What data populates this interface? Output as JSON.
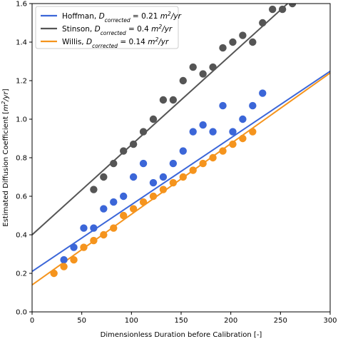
{
  "chart_data": {
    "type": "scatter",
    "xlabel": "Dimensionless Duration before Calibration [-]",
    "ylabel_main": "Estimated Diffusion Coefficient [",
    "ylabel_unit": "m",
    "ylabel_unit_exp": "2",
    "ylabel_unit_rest": "/yr",
    "ylabel_close": "]",
    "xlim": [
      0,
      300
    ],
    "ylim": [
      0,
      1.6
    ],
    "x_ticks": [
      "0",
      "50",
      "100",
      "150",
      "200",
      "250",
      "300"
    ],
    "y_ticks": [
      "0.0",
      "0.2",
      "0.4",
      "0.6",
      "0.8",
      "1.0",
      "1.2",
      "1.4",
      "1.6"
    ],
    "grid": false,
    "legend_position": "top-left",
    "series": [
      {
        "name": "Hoffman",
        "D_label": "D",
        "D_subscript": "corrected",
        "D_value": " = 0.21 ",
        "D_unit": "m",
        "D_unit_exp": "2",
        "D_unit_rest": "/yr",
        "color": "#3b66d8",
        "line": {
          "intercept": 0.21,
          "slope": 0.003463
        },
        "points": [
          [
            32,
            0.27
          ],
          [
            42,
            0.335
          ],
          [
            52,
            0.435
          ],
          [
            62,
            0.435
          ],
          [
            72,
            0.535
          ],
          [
            82,
            0.57
          ],
          [
            92,
            0.6
          ],
          [
            102,
            0.7
          ],
          [
            112,
            0.77
          ],
          [
            122,
            0.67
          ],
          [
            132,
            0.7
          ],
          [
            142,
            0.77
          ],
          [
            152,
            0.835
          ],
          [
            162,
            0.935
          ],
          [
            172,
            0.97
          ],
          [
            182,
            0.935
          ],
          [
            192,
            1.07
          ],
          [
            202,
            0.935
          ],
          [
            212,
            1.0
          ],
          [
            222,
            1.07
          ],
          [
            232,
            1.135
          ]
        ]
      },
      {
        "name": "Stinson",
        "D_label": "D",
        "D_subscript": "corrected",
        "D_value": " = 0.4 ",
        "D_unit": "m",
        "D_unit_exp": "2",
        "D_unit_rest": "/yr",
        "color": "#555555",
        "line": {
          "intercept": 0.4,
          "slope": 0.004666
        },
        "points": [
          [
            62,
            0.635
          ],
          [
            72,
            0.7
          ],
          [
            82,
            0.77
          ],
          [
            92,
            0.835
          ],
          [
            102,
            0.87
          ],
          [
            112,
            0.935
          ],
          [
            122,
            1.0
          ],
          [
            132,
            1.1
          ],
          [
            142,
            1.1
          ],
          [
            152,
            1.2
          ],
          [
            162,
            1.27
          ],
          [
            172,
            1.235
          ],
          [
            182,
            1.27
          ],
          [
            192,
            1.37
          ],
          [
            202,
            1.4
          ],
          [
            212,
            1.435
          ],
          [
            222,
            1.4
          ],
          [
            232,
            1.5
          ],
          [
            242,
            1.57
          ],
          [
            252,
            1.57
          ],
          [
            262,
            1.6
          ]
        ]
      },
      {
        "name": "Willis",
        "D_label": "D",
        "D_subscript": "corrected",
        "D_value": " = 0.14 ",
        "D_unit": "m",
        "D_unit_exp": "2",
        "D_unit_rest": "/yr",
        "color": "#f5941d",
        "line": {
          "intercept": 0.14,
          "slope": 0.003666
        },
        "points": [
          [
            22,
            0.2
          ],
          [
            32,
            0.235
          ],
          [
            42,
            0.27
          ],
          [
            52,
            0.335
          ],
          [
            62,
            0.37
          ],
          [
            72,
            0.4
          ],
          [
            82,
            0.435
          ],
          [
            92,
            0.5
          ],
          [
            102,
            0.535
          ],
          [
            112,
            0.57
          ],
          [
            122,
            0.6
          ],
          [
            132,
            0.635
          ],
          [
            142,
            0.67
          ],
          [
            152,
            0.7
          ],
          [
            162,
            0.735
          ],
          [
            172,
            0.77
          ],
          [
            182,
            0.8
          ],
          [
            192,
            0.835
          ],
          [
            202,
            0.87
          ],
          [
            212,
            0.9
          ],
          [
            222,
            0.935
          ]
        ]
      }
    ]
  }
}
